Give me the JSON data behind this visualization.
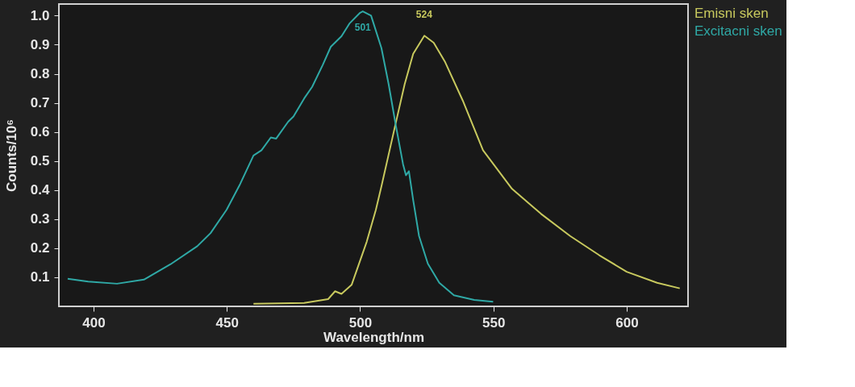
{
  "chart_data": {
    "type": "line",
    "xlabel": "Wavelength/nm",
    "ylabel": "Counts/10⁶",
    "xlim": [
      387,
      623
    ],
    "xticks": [
      400,
      450,
      500,
      550,
      600
    ],
    "ylim": [
      0,
      1.04
    ],
    "yticks": [
      0.1,
      0.2,
      0.3,
      0.4,
      0.5,
      0.6,
      0.7,
      0.8,
      0.9,
      {
        "value": 1.0,
        "label": "1.0"
      }
    ],
    "grid": false,
    "legend": "top right",
    "line_style": "solid",
    "marker": "none",
    "series": [
      {
        "name": "Emisni sken",
        "color": "#c8c95e",
        "x": [
          460,
          479,
          488,
          490.6,
          493,
          496.8,
          502.5,
          505.9,
          508,
          513.4,
          516.7,
          519.9,
          524.1,
          527.6,
          531.9,
          538.5,
          546.1,
          557,
          567.9,
          578.8,
          589.7,
          600,
          611.4,
          619.9
        ],
        "values": [
          0.009,
          0.012,
          0.025,
          0.052,
          0.043,
          0.074,
          0.223,
          0.332,
          0.413,
          0.632,
          0.764,
          0.869,
          0.931,
          0.907,
          0.84,
          0.708,
          0.537,
          0.404,
          0.318,
          0.242,
          0.176,
          0.119,
          0.081,
          0.062
        ]
      },
      {
        "name": "Excitacni sken",
        "color": "#2fa9a6",
        "x": [
          390.3,
          398,
          408.8,
          418.9,
          428.9,
          438.9,
          443.9,
          449.9,
          455,
          460,
          463,
          466.5,
          468.5,
          473,
          475,
          479,
          482,
          486,
          489,
          493,
          496,
          500,
          501,
          504.1,
          508,
          510.7,
          513.4,
          516.1,
          517.2,
          518.3,
          519.9,
          522.1,
          525.4,
          529.7,
          535.2,
          542.8,
          549.9
        ],
        "values": [
          0.095,
          0.085,
          0.078,
          0.092,
          0.145,
          0.207,
          0.252,
          0.332,
          0.421,
          0.519,
          0.537,
          0.581,
          0.577,
          0.635,
          0.653,
          0.715,
          0.755,
          0.831,
          0.893,
          0.929,
          0.973,
          1.01,
          1.015,
          1.0,
          0.888,
          0.764,
          0.622,
          0.489,
          0.451,
          0.465,
          0.366,
          0.242,
          0.147,
          0.081,
          0.038,
          0.022,
          0.016
        ]
      }
    ],
    "annotations": [
      {
        "text": "501",
        "x": 501,
        "y": 1.015
      },
      {
        "text": "524",
        "x": 524,
        "y": 0.931
      }
    ]
  }
}
